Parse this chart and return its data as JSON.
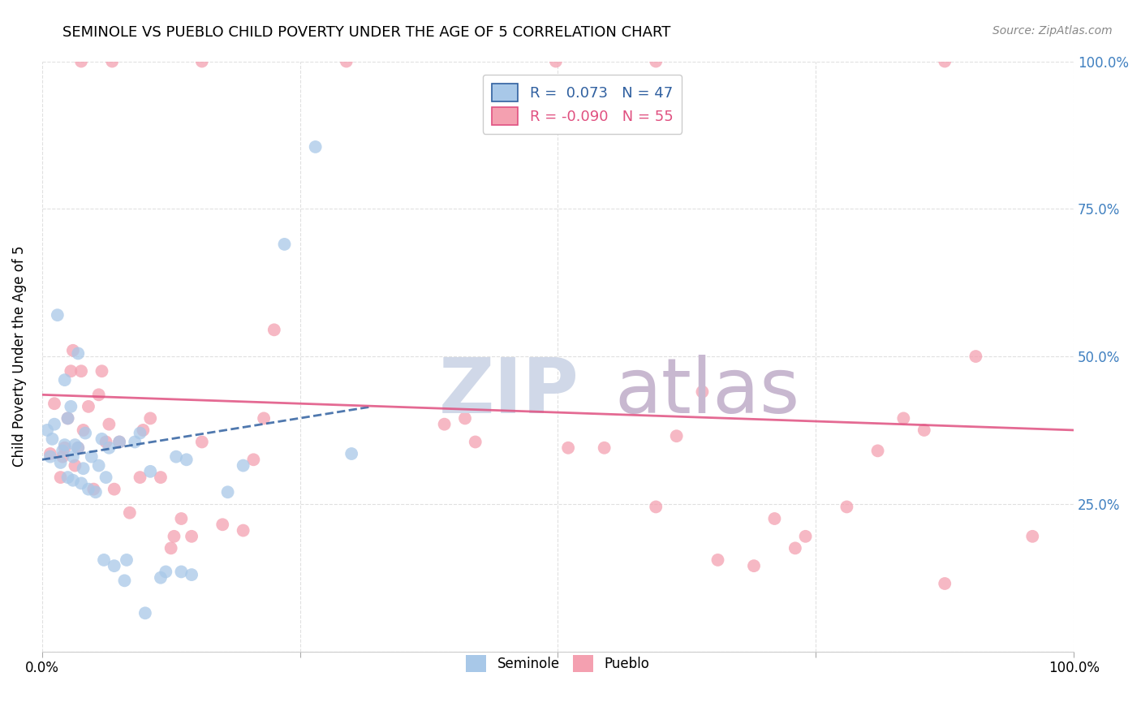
{
  "title": "SEMINOLE VS PUEBLO CHILD POVERTY UNDER THE AGE OF 5 CORRELATION CHART",
  "source": "Source: ZipAtlas.com",
  "ylabel": "Child Poverty Under the Age of 5",
  "seminole_R": 0.073,
  "seminole_N": 47,
  "pueblo_R": -0.09,
  "pueblo_N": 55,
  "seminole_color": "#a8c8e8",
  "pueblo_color": "#f4a0b0",
  "seminole_line_color": "#3060a0",
  "pueblo_line_color": "#e05080",
  "right_axis_color": "#4080c0",
  "grid_color": "#dddddd",
  "bg_color": "#ffffff",
  "watermark_color": "#d0d8e8",
  "watermark2_color": "#c8b8d0",
  "xlim": [
    0.0,
    1.0
  ],
  "ylim": [
    0.0,
    1.0
  ],
  "seminole_x": [
    0.005,
    0.008,
    0.01,
    0.012,
    0.015,
    0.018,
    0.02,
    0.022,
    0.022,
    0.025,
    0.025,
    0.028,
    0.03,
    0.03,
    0.032,
    0.035,
    0.035,
    0.038,
    0.04,
    0.042,
    0.045,
    0.048,
    0.052,
    0.055,
    0.058,
    0.06,
    0.062,
    0.065,
    0.07,
    0.075,
    0.08,
    0.082,
    0.09,
    0.095,
    0.1,
    0.105,
    0.115,
    0.12,
    0.13,
    0.135,
    0.14,
    0.145,
    0.18,
    0.195,
    0.235,
    0.265,
    0.3
  ],
  "seminole_y": [
    0.375,
    0.33,
    0.36,
    0.385,
    0.57,
    0.32,
    0.34,
    0.35,
    0.46,
    0.295,
    0.395,
    0.415,
    0.29,
    0.33,
    0.35,
    0.345,
    0.505,
    0.285,
    0.31,
    0.37,
    0.275,
    0.33,
    0.27,
    0.315,
    0.36,
    0.155,
    0.295,
    0.345,
    0.145,
    0.355,
    0.12,
    0.155,
    0.355,
    0.37,
    0.065,
    0.305,
    0.125,
    0.135,
    0.33,
    0.135,
    0.325,
    0.13,
    0.27,
    0.315,
    0.69,
    0.855,
    0.335
  ],
  "pueblo_x": [
    0.008,
    0.012,
    0.018,
    0.02,
    0.022,
    0.025,
    0.028,
    0.03,
    0.032,
    0.035,
    0.038,
    0.04,
    0.045,
    0.05,
    0.055,
    0.058,
    0.062,
    0.065,
    0.07,
    0.075,
    0.085,
    0.095,
    0.098,
    0.105,
    0.115,
    0.125,
    0.128,
    0.135,
    0.145,
    0.155,
    0.175,
    0.195,
    0.205,
    0.215,
    0.225,
    0.39,
    0.41,
    0.42,
    0.51,
    0.545,
    0.595,
    0.615,
    0.64,
    0.655,
    0.69,
    0.71,
    0.73,
    0.74,
    0.78,
    0.81,
    0.835,
    0.855,
    0.875,
    0.905,
    0.96
  ],
  "pueblo_y": [
    0.335,
    0.42,
    0.295,
    0.33,
    0.345,
    0.395,
    0.475,
    0.51,
    0.315,
    0.345,
    0.475,
    0.375,
    0.415,
    0.275,
    0.435,
    0.475,
    0.355,
    0.385,
    0.275,
    0.355,
    0.235,
    0.295,
    0.375,
    0.395,
    0.295,
    0.175,
    0.195,
    0.225,
    0.195,
    0.355,
    0.215,
    0.205,
    0.325,
    0.395,
    0.545,
    0.385,
    0.395,
    0.355,
    0.345,
    0.345,
    0.245,
    0.365,
    0.44,
    0.155,
    0.145,
    0.225,
    0.175,
    0.195,
    0.245,
    0.34,
    0.395,
    0.375,
    0.115,
    0.5,
    0.195
  ],
  "pueblo_top_x": [
    0.038,
    0.068,
    0.155,
    0.295,
    0.498,
    0.595,
    0.875
  ],
  "pueblo_top_y": [
    1.0,
    1.0,
    1.0,
    1.0,
    1.0,
    1.0,
    1.0
  ],
  "seminole_trend_x0": 0.0,
  "seminole_trend_y0": 0.325,
  "seminole_trend_x1": 0.32,
  "seminole_trend_y1": 0.415,
  "pueblo_trend_x0": 0.0,
  "pueblo_trend_y0": 0.435,
  "pueblo_trend_x1": 1.0,
  "pueblo_trend_y1": 0.375
}
